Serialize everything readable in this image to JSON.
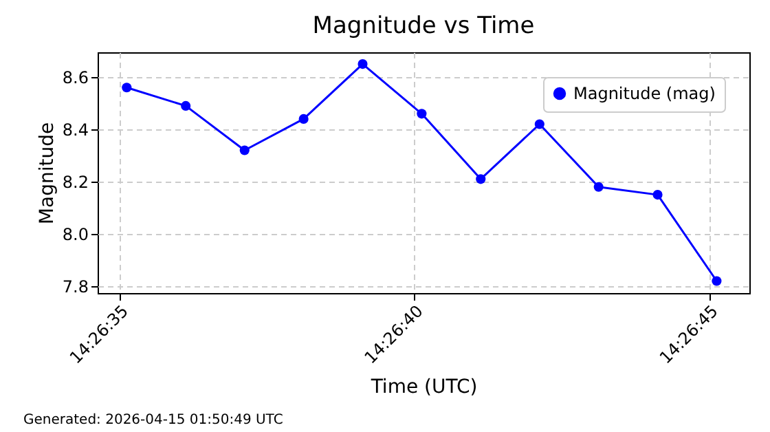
{
  "chart_data": {
    "type": "line",
    "title": "Magnitude vs Time",
    "xlabel": "Time (UTC)",
    "ylabel": "Magnitude",
    "x": [
      14.443089,
      14.443367,
      14.443644,
      14.443922,
      14.4442,
      14.444478,
      14.444756,
      14.445033,
      14.445311,
      14.445589,
      14.445867
    ],
    "series": [
      {
        "name": "Magnitude (mag)",
        "color": "#0000ff",
        "values": [
          8.56,
          8.49,
          8.32,
          8.44,
          8.65,
          8.46,
          8.21,
          8.42,
          8.18,
          8.15,
          7.82
        ]
      }
    ],
    "xlim": [
      14.442952,
      14.446021
    ],
    "xticks": [
      {
        "value": 14.443056,
        "label": "14:26:35"
      },
      {
        "value": 14.444444,
        "label": "14:26:40"
      },
      {
        "value": 14.445833,
        "label": "14:26:45"
      }
    ],
    "ylim": [
      7.774,
      8.695
    ],
    "yticks": [
      7.8,
      {
        "value": 8,
        "label": "8.0"
      },
      8.2,
      8.4,
      8.6
    ],
    "grid": true,
    "legend": "top right",
    "marker": "circle",
    "line_style": "solid",
    "annotations": [
      "Generated: 2026-04-15 01:50:49 UTC"
    ]
  }
}
